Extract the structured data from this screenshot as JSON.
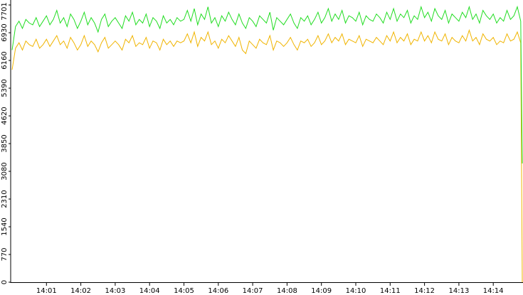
{
  "chart_data": {
    "type": "line",
    "categories": [
      null,
      null,
      null,
      null,
      null,
      null,
      null,
      null,
      null,
      null,
      "14:01",
      null,
      null,
      null,
      null,
      null,
      null,
      null,
      null,
      null,
      "14:02",
      null,
      null,
      null,
      null,
      null,
      null,
      null,
      null,
      null,
      "14:03",
      null,
      null,
      null,
      null,
      null,
      null,
      null,
      null,
      null,
      "14:04",
      null,
      null,
      null,
      null,
      null,
      null,
      null,
      null,
      null,
      "14:05",
      null,
      null,
      null,
      null,
      null,
      null,
      null,
      null,
      null,
      "14:06",
      null,
      null,
      null,
      null,
      null,
      null,
      null,
      null,
      null,
      "14:07",
      null,
      null,
      null,
      null,
      null,
      null,
      null,
      null,
      null,
      "14:08",
      null,
      null,
      null,
      null,
      null,
      null,
      null,
      null,
      null,
      "14:09",
      null,
      null,
      null,
      null,
      null,
      null,
      null,
      null,
      null,
      "14:10",
      null,
      null,
      null,
      null,
      null,
      null,
      null,
      null,
      null,
      "14:11",
      null,
      null,
      null,
      null,
      null,
      null,
      null,
      null,
      null,
      "14:12",
      null,
      null,
      null,
      null,
      null,
      null,
      null,
      null,
      null,
      "14:13",
      null,
      null,
      null,
      null,
      null,
      null,
      null,
      null,
      null,
      "14:14",
      null,
      null,
      null,
      null,
      null,
      null,
      null,
      null,
      null
    ],
    "series": [
      {
        "color": "#22dd22",
        "values": [
          6450,
          7100,
          7250,
          7050,
          7300,
          7200,
          7150,
          7350,
          7100,
          7250,
          7400,
          7150,
          7300,
          7550,
          7200,
          7350,
          7100,
          7450,
          7300,
          7050,
          7250,
          7500,
          7150,
          7350,
          7200,
          6950,
          7300,
          7450,
          7100,
          7250,
          7350,
          7200,
          7050,
          7400,
          7250,
          7500,
          7150,
          7300,
          7200,
          7450,
          7100,
          7350,
          7250,
          7050,
          7400,
          7200,
          7300,
          7150,
          7350,
          7250,
          7300,
          7550,
          7250,
          7600,
          7150,
          7450,
          7300,
          7650,
          7200,
          7350,
          7100,
          7400,
          7250,
          7500,
          7300,
          7150,
          7450,
          7200,
          7050,
          7350,
          7250,
          7100,
          7400,
          7300,
          7200,
          7500,
          7000,
          7350,
          7250,
          7150,
          7300,
          7450,
          7200,
          7050,
          7350,
          7250,
          7400,
          7150,
          7300,
          7500,
          7200,
          7350,
          7600,
          7250,
          7450,
          7300,
          7550,
          7200,
          7400,
          7350,
          7250,
          7500,
          7150,
          7400,
          7300,
          7250,
          7450,
          7350,
          7200,
          7500,
          7300,
          7600,
          7250,
          7450,
          7350,
          7550,
          7200,
          7400,
          7300,
          7650,
          7350,
          7500,
          7250,
          7600,
          7400,
          7300,
          7550,
          7200,
          7450,
          7350,
          7250,
          7500,
          7350,
          7650,
          7300,
          7450,
          7200,
          7550,
          7400,
          7300,
          7450,
          7200,
          7350,
          7250,
          7550,
          7300,
          7400,
          7650,
          7250,
          3300
        ]
      },
      {
        "color": "#f0b400",
        "values": [
          5900,
          6500,
          6650,
          6450,
          6700,
          6600,
          6550,
          6750,
          6500,
          6600,
          6750,
          6550,
          6700,
          6850,
          6600,
          6700,
          6500,
          6800,
          6650,
          6450,
          6600,
          6850,
          6550,
          6700,
          6600,
          6400,
          6650,
          6800,
          6500,
          6600,
          6700,
          6600,
          6450,
          6750,
          6650,
          6850,
          6550,
          6650,
          6600,
          6800,
          6500,
          6700,
          6650,
          6450,
          6750,
          6600,
          6700,
          6550,
          6700,
          6650,
          6700,
          6900,
          6650,
          6950,
          6550,
          6800,
          6700,
          6950,
          6600,
          6700,
          6500,
          6750,
          6650,
          6850,
          6700,
          6550,
          6800,
          6450,
          6350,
          6700,
          6600,
          6500,
          6750,
          6650,
          6600,
          6850,
          6450,
          6700,
          6650,
          6550,
          6650,
          6800,
          6600,
          6450,
          6700,
          6650,
          6750,
          6550,
          6650,
          6850,
          6600,
          6700,
          6900,
          6650,
          6800,
          6700,
          6900,
          6600,
          6750,
          6700,
          6650,
          6850,
          6550,
          6750,
          6700,
          6650,
          6800,
          6700,
          6600,
          6850,
          6700,
          6950,
          6650,
          6800,
          6700,
          6900,
          6600,
          6750,
          6700,
          6950,
          6700,
          6850,
          6650,
          6950,
          6750,
          6700,
          6900,
          6600,
          6800,
          6700,
          6650,
          6850,
          6700,
          7000,
          6700,
          6800,
          6600,
          6900,
          6750,
          6700,
          6800,
          6600,
          6700,
          6650,
          6900,
          6700,
          6750,
          6950,
          6650,
          0
        ]
      }
    ],
    "ylim": [
      0,
      7701
    ],
    "yticks": [
      0,
      770,
      1540,
      2310,
      3080,
      3850,
      4620,
      5390,
      6160,
      6930,
      7701
    ]
  }
}
